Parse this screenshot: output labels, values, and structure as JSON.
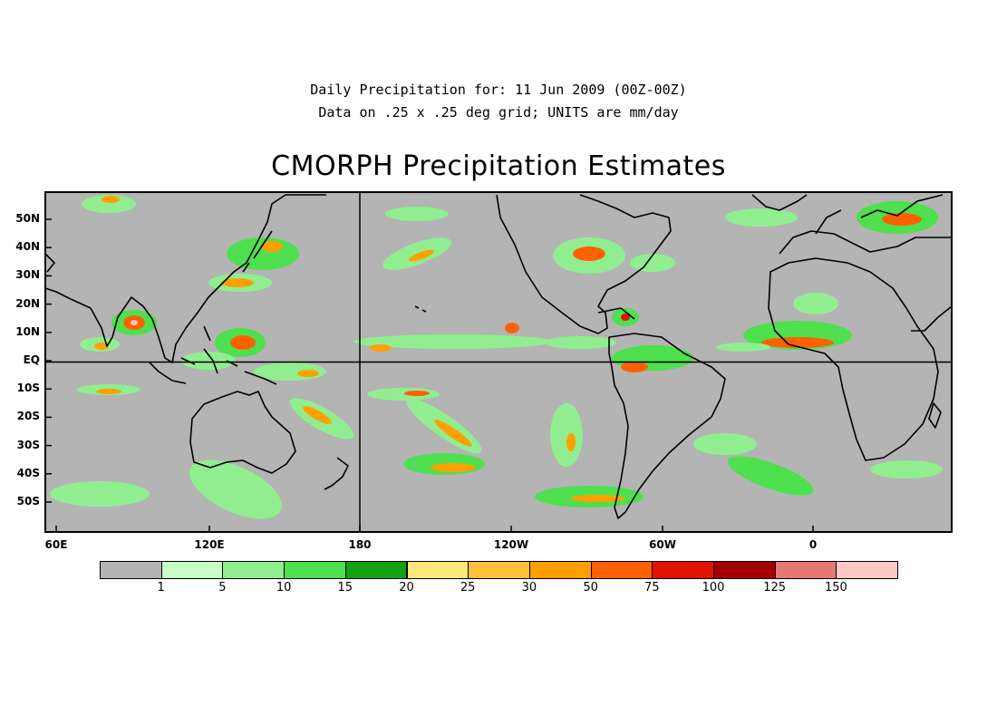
{
  "header": {
    "line1": "Daily Precipitation for: 11 Jun 2009 (00Z-00Z)",
    "line2": "Data on .25 x .25 deg grid; UNITS are mm/day"
  },
  "title": "CMORPH Precipitation Estimates",
  "map": {
    "background_color": "#b4b4b4",
    "lat_labels": [
      "50N",
      "40N",
      "30N",
      "20N",
      "10N",
      "EQ",
      "10S",
      "20S",
      "30S",
      "40S",
      "50S"
    ],
    "lon_labels": [
      "60E",
      "120E",
      "180",
      "120W",
      "60W",
      "0"
    ]
  },
  "colorbar": {
    "colors": [
      "#b4b4b4",
      "#c8ffc8",
      "#90ee90",
      "#4ee04e",
      "#13a013",
      "#ffe878",
      "#ffc03c",
      "#ffa000",
      "#ff6000",
      "#e11400",
      "#a50000",
      "#e67878",
      "#ffc8c8"
    ],
    "labels": [
      "1",
      "5",
      "10",
      "15",
      "20",
      "25",
      "30",
      "50",
      "75",
      "100",
      "125",
      "150"
    ]
  }
}
